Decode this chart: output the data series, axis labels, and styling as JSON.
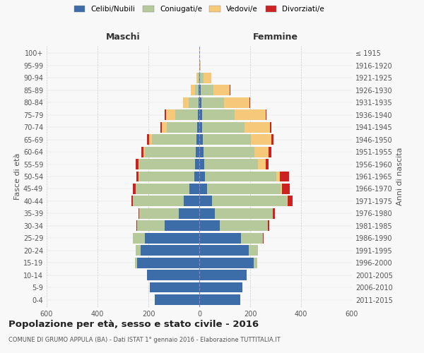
{
  "age_groups": [
    "0-4",
    "5-9",
    "10-14",
    "15-19",
    "20-24",
    "25-29",
    "30-34",
    "35-39",
    "40-44",
    "45-49",
    "50-54",
    "55-59",
    "60-64",
    "65-69",
    "70-74",
    "75-79",
    "80-84",
    "85-89",
    "90-94",
    "95-99",
    "100+"
  ],
  "birth_years": [
    "2011-2015",
    "2006-2010",
    "2001-2005",
    "1996-2000",
    "1991-1995",
    "1986-1990",
    "1981-1985",
    "1976-1980",
    "1971-1975",
    "1966-1970",
    "1961-1965",
    "1956-1960",
    "1951-1955",
    "1946-1950",
    "1941-1945",
    "1936-1940",
    "1931-1935",
    "1926-1930",
    "1921-1925",
    "1916-1920",
    "≤ 1915"
  ],
  "male": {
    "celibe": [
      175,
      195,
      205,
      245,
      230,
      215,
      135,
      80,
      60,
      40,
      20,
      16,
      14,
      12,
      8,
      5,
      3,
      2,
      0,
      0,
      0
    ],
    "coniugato": [
      0,
      0,
      0,
      8,
      20,
      45,
      110,
      155,
      200,
      210,
      215,
      220,
      200,
      175,
      120,
      90,
      40,
      15,
      5,
      0,
      0
    ],
    "vedovo": [
      0,
      0,
      0,
      0,
      0,
      0,
      0,
      0,
      0,
      0,
      3,
      3,
      5,
      10,
      20,
      35,
      20,
      15,
      5,
      0,
      0
    ],
    "divorziato": [
      0,
      0,
      0,
      0,
      0,
      0,
      3,
      5,
      8,
      10,
      10,
      10,
      8,
      8,
      5,
      5,
      0,
      0,
      0,
      0,
      0
    ]
  },
  "female": {
    "nubile": [
      160,
      170,
      185,
      215,
      195,
      165,
      80,
      60,
      50,
      30,
      22,
      20,
      18,
      14,
      12,
      10,
      8,
      5,
      2,
      0,
      0
    ],
    "coniugata": [
      0,
      0,
      0,
      12,
      35,
      85,
      190,
      230,
      295,
      290,
      280,
      210,
      200,
      190,
      165,
      130,
      90,
      50,
      15,
      3,
      0
    ],
    "vedova": [
      0,
      0,
      0,
      0,
      0,
      0,
      0,
      0,
      3,
      5,
      15,
      30,
      55,
      80,
      100,
      120,
      100,
      65,
      30,
      3,
      2
    ],
    "divorziata": [
      0,
      0,
      0,
      0,
      0,
      2,
      5,
      8,
      20,
      30,
      35,
      12,
      10,
      8,
      5,
      5,
      3,
      3,
      0,
      0,
      0
    ]
  },
  "colors": {
    "celibe": "#3d6da8",
    "coniugato": "#b5c99a",
    "vedovo": "#f5c87a",
    "divorziato": "#cc2222"
  },
  "legend_labels": [
    "Celibi/Nubili",
    "Coniugati/e",
    "Vedovi/e",
    "Divorziati/e"
  ],
  "title": "Popolazione per età, sesso e stato civile - 2016",
  "subtitle": "COMUNE DI GRUMO APPULA (BA) - Dati ISTAT 1° gennaio 2016 - Elaborazione TUTTITALIA.IT",
  "label_maschi": "Maschi",
  "label_femmine": "Femmine",
  "ylabel_left": "Fasce di età",
  "ylabel_right": "Anni di nascita",
  "xlim": 600,
  "background_color": "#f8f8f8"
}
